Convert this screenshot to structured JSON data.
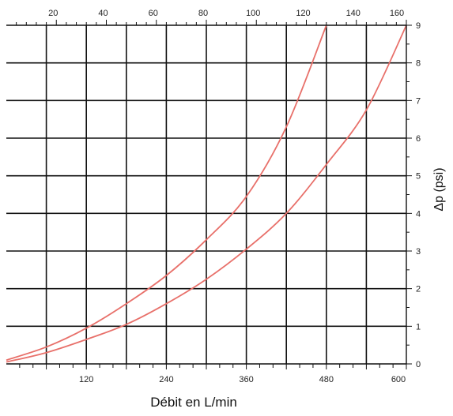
{
  "chart_data": {
    "type": "line",
    "title": "",
    "bottom_axis": {
      "label": "Débit en L/min",
      "ticks": [
        120,
        240,
        360,
        480,
        600
      ],
      "range": [
        0,
        600
      ]
    },
    "top_axis": {
      "ticks": [
        20,
        40,
        60,
        80,
        100,
        120,
        140,
        160
      ],
      "range": [
        0,
        160
      ]
    },
    "right_axis": {
      "label": "Δp (psi)",
      "ticks": [
        0,
        1,
        2,
        3,
        4,
        5,
        6,
        7,
        8,
        9
      ],
      "range": [
        0,
        9
      ]
    },
    "grid": true,
    "curve_color": "#e8706a",
    "series": [
      {
        "x": [
          0,
          60,
          120,
          180,
          240,
          300,
          360,
          420,
          480
        ],
        "y": [
          0.1,
          0.45,
          0.95,
          1.6,
          2.35,
          3.3,
          4.45,
          6.3,
          9.0
        ]
      },
      {
        "x": [
          0,
          60,
          120,
          180,
          240,
          300,
          360,
          420,
          480,
          540,
          600
        ],
        "y": [
          0.05,
          0.3,
          0.65,
          1.05,
          1.6,
          2.25,
          3.05,
          4.0,
          5.3,
          6.75,
          9.0
        ]
      }
    ]
  }
}
